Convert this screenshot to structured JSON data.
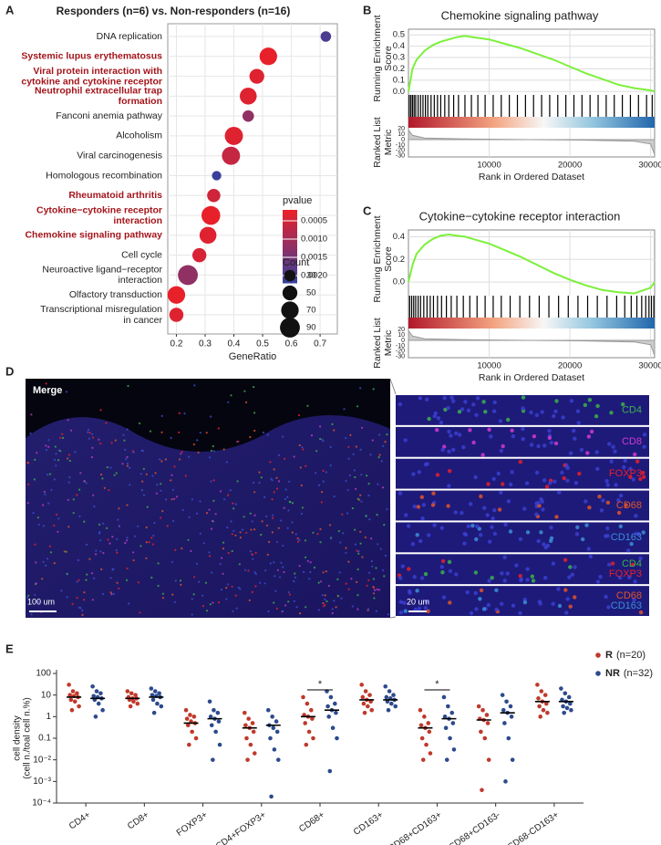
{
  "panel_labels": [
    "A",
    "B",
    "C",
    "D",
    "E"
  ],
  "chart_data": [
    {
      "type": "dotplot",
      "title": "Responders (n=6) vs. Non-responders (n=16)",
      "categories": [
        "DNA replication",
        "Systemic lupus erythematosus",
        "Viral protein interaction with\ncytokine and cytokine receptor",
        "Neutrophil extracellular trap\nformation",
        "Fanconi anemia pathway",
        "Alcoholism",
        "Viral carcinogenesis",
        "Homologous recombination",
        "Rheumatoid arthritis",
        "Cytokine−cytokine receptor\ninteraction",
        "Chemokine signaling pathway",
        "Cell cycle",
        "Neuroactive ligand−receptor\ninteraction",
        "Olfactory transduction",
        "Transcriptional misregulation\nin cancer"
      ],
      "highlighted": [
        false,
        true,
        true,
        true,
        false,
        false,
        false,
        false,
        true,
        true,
        true,
        false,
        false,
        false,
        false
      ],
      "highlight_color": "#a3151b",
      "x": [
        0.72,
        0.52,
        0.48,
        0.45,
        0.45,
        0.4,
        0.39,
        0.34,
        0.33,
        0.32,
        0.31,
        0.28,
        0.24,
        0.2,
        0.2
      ],
      "size": [
        25,
        70,
        50,
        65,
        30,
        75,
        75,
        20,
        40,
        80,
        65,
        45,
        90,
        70,
        45
      ],
      "color_values": [
        0.002,
        0.0002,
        0.0003,
        0.0003,
        0.0012,
        0.0003,
        0.0006,
        0.0022,
        0.0005,
        0.0002,
        0.0003,
        0.0004,
        0.0012,
        0.0002,
        0.0003
      ],
      "xlabel": "GeneRatio",
      "xlim": [
        0.17,
        0.76
      ],
      "xticks": [
        0.2,
        0.3,
        0.4,
        0.5,
        0.6,
        0.7
      ],
      "grid": true,
      "color_title": "pvalue",
      "color_lim": [
        0.0002,
        0.0022
      ],
      "colors": [
        "#e8202a",
        "#3a3f9b"
      ],
      "color_ticks": [
        0.0005,
        {
          "value": 0.001,
          "label": "0.0010"
        },
        0.0015,
        {
          "value": 0.002,
          "label": "0.0020"
        }
      ],
      "size_title": "Count",
      "size_ticks": [
        30,
        50,
        70,
        90
      ]
    },
    {
      "type": "gsea",
      "title": "Chemokine signaling pathway",
      "ylabel": "Running Enrichment\nScore",
      "color": "#7cf03a",
      "x": [
        0,
        500,
        1000,
        2000,
        3000,
        4000,
        5000,
        6000,
        7000,
        8000,
        10000,
        12000,
        14000,
        16000,
        18000,
        20000,
        22000,
        24000,
        26000,
        28000,
        30000,
        30500
      ],
      "values": [
        0,
        0.2,
        0.28,
        0.36,
        0.41,
        0.44,
        0.46,
        0.48,
        0.49,
        0.48,
        0.46,
        0.42,
        0.38,
        0.33,
        0.28,
        0.22,
        0.16,
        0.11,
        0.06,
        0.03,
        0.01,
        0
      ],
      "ylim": [
        -0.03,
        0.55
      ],
      "yticks": [
        {
          "value": 0,
          "label": "0.0"
        },
        0.1,
        0.2,
        0.3,
        0.4,
        0.5
      ],
      "hits": [
        100,
        300,
        500,
        700,
        900,
        1200,
        1500,
        1800,
        2100,
        2400,
        2800,
        3200,
        3600,
        4000,
        4500,
        5000,
        5600,
        6200,
        7000,
        7800,
        8600,
        9500,
        10500,
        11500,
        12500,
        13500,
        14500,
        15500,
        16500,
        17500,
        18500,
        19500,
        20500,
        21500,
        22500,
        23500,
        24500,
        25500,
        26500,
        27500,
        28500,
        29500,
        30200
      ],
      "metric_label": "Ranked List\nMetric",
      "metric_x": [
        0,
        500,
        2000,
        8000,
        15000,
        22000,
        28000,
        30000,
        30500
      ],
      "metric_values": [
        18,
        8,
        3,
        1,
        0,
        -1,
        -3,
        -8,
        -28
      ],
      "metric_ylim": [
        -32,
        22
      ],
      "metric_yticks": [
        20,
        10,
        0,
        -10,
        -20,
        -30
      ],
      "xlabel": "Rank in Ordered Dataset",
      "xlim": [
        0,
        30500
      ],
      "xticks": [
        10000,
        20000,
        30000
      ]
    },
    {
      "type": "gsea",
      "title": "Cytokine−cytokine receptor interaction",
      "ylabel": "Running Enrichment\nScore",
      "color": "#7cf03a",
      "x": [
        0,
        500,
        1000,
        2000,
        3000,
        4000,
        5000,
        6000,
        7000,
        8000,
        10000,
        12000,
        14000,
        16000,
        18000,
        20000,
        22000,
        24000,
        26000,
        28000,
        30000,
        30500
      ],
      "values": [
        0,
        0.15,
        0.25,
        0.33,
        0.38,
        0.41,
        0.42,
        0.41,
        0.4,
        0.38,
        0.34,
        0.28,
        0.22,
        0.15,
        0.08,
        0.02,
        -0.03,
        -0.07,
        -0.09,
        -0.1,
        -0.05,
        0
      ],
      "ylim": [
        -0.12,
        0.46
      ],
      "yticks": [
        {
          "value": 0,
          "label": "0.0"
        },
        0.2,
        0.4
      ],
      "hits": [
        150,
        400,
        650,
        900,
        1200,
        1500,
        1900,
        2300,
        2700,
        3100,
        3600,
        4100,
        4700,
        5300,
        6000,
        6800,
        7600,
        8500,
        9500,
        10500,
        11500,
        12600,
        13800,
        15000,
        16200,
        17400,
        18600,
        19800,
        21000,
        22200,
        23400,
        24600,
        25800,
        26800,
        27600,
        28300,
        28900,
        29400,
        29800,
        30100,
        30400
      ],
      "metric_label": "Ranked List\nMetric",
      "metric_x": [
        0,
        500,
        2000,
        8000,
        15000,
        22000,
        28000,
        30000,
        30500
      ],
      "metric_values": [
        18,
        8,
        3,
        1,
        0,
        -1,
        -3,
        -8,
        -28
      ],
      "metric_ylim": [
        -32,
        22
      ],
      "metric_yticks": [
        20,
        10,
        0,
        -10,
        -20,
        -30
      ],
      "xlabel": "Rank in Ordered Dataset",
      "xlim": [
        0,
        30500
      ],
      "xticks": [
        10000,
        20000,
        30000
      ]
    },
    {
      "type": "strip",
      "ylabel": "cell density\n(cell n./toal cell n.%)",
      "categories": [
        "CD4+",
        "CD8+",
        "FOXP3+",
        "CD4+FOXP3+",
        "CD68+",
        "CD163+",
        "CD68+CD163+",
        "CD68+CD163-",
        "CD68-CD163+"
      ],
      "log_y": true,
      "ylim": [
        0.0001,
        100
      ],
      "yticks": [
        100,
        10,
        1,
        0.1,
        {
          "value": 0.01,
          "label": "10⁻²"
        },
        {
          "value": 0.001,
          "label": "10⁻³"
        },
        {
          "value": 0.0001,
          "label": "10⁻⁴"
        }
      ],
      "series": [
        {
          "name": "R",
          "n_label": "(n=20)",
          "color": "#c0392b",
          "values": [
            [
              30,
              15,
              12,
              10,
              9,
              8,
              6,
              5,
              3,
              2
            ],
            [
              15,
              12,
              10,
              8,
              7,
              7,
              6,
              5,
              4,
              3
            ],
            [
              2,
              1.2,
              1,
              0.8,
              0.6,
              0.5,
              0.4,
              0.2,
              0.1,
              0.05
            ],
            [
              1.5,
              0.8,
              0.5,
              0.4,
              0.3,
              0.2,
              0.1,
              0.05,
              0.02,
              0.01
            ],
            [
              8,
              4,
              2,
              1.2,
              1,
              0.8,
              0.5,
              0.2,
              0.1,
              0.05
            ],
            [
              30,
              15,
              10,
              8,
              6,
              5,
              4,
              3,
              2,
              1.5
            ],
            [
              2,
              1,
              0.5,
              0.4,
              0.3,
              0.2,
              0.1,
              0.05,
              0.02,
              0.01
            ],
            [
              3,
              2,
              1.2,
              0.8,
              0.7,
              0.5,
              0.2,
              0.1,
              0.01,
              0.0004
            ],
            [
              30,
              15,
              10,
              7,
              5,
              4,
              3,
              2,
              1.5,
              1
            ]
          ],
          "medians": [
            8,
            7,
            0.5,
            0.3,
            1,
            6,
            0.3,
            0.7,
            5
          ]
        },
        {
          "name": "NR",
          "n_label": "(n=32)",
          "color": "#2c4a8c",
          "values": [
            [
              25,
              15,
              12,
              9,
              8,
              7,
              6,
              4,
              2,
              1
            ],
            [
              20,
              15,
              12,
              10,
              9,
              8,
              6,
              4,
              3,
              1.5
            ],
            [
              5,
              2,
              1.5,
              1,
              0.8,
              0.6,
              0.4,
              0.2,
              0.05,
              0.01
            ],
            [
              2,
              1,
              0.6,
              0.4,
              0.3,
              0.2,
              0.1,
              0.03,
              0.01,
              0.0002
            ],
            [
              15,
              8,
              4,
              3,
              2,
              1.5,
              1,
              0.3,
              0.1,
              0.003
            ],
            [
              25,
              15,
              10,
              8,
              7,
              6,
              5,
              4,
              3,
              2
            ],
            [
              8,
              3,
              1.5,
              1,
              0.8,
              0.5,
              0.3,
              0.1,
              0.03,
              0.01
            ],
            [
              10,
              5,
              3,
              2,
              1.5,
              1,
              0.5,
              0.1,
              0.01,
              0.001
            ],
            [
              20,
              12,
              8,
              6,
              5,
              4,
              3,
              2.5,
              2,
              1.5
            ]
          ],
          "medians": [
            7,
            8,
            0.8,
            0.4,
            2,
            6,
            0.8,
            1.5,
            5
          ]
        }
      ],
      "annotations": [
        {
          "text": "*",
          "category": 4
        },
        {
          "text": "*",
          "category": 6
        }
      ],
      "legend": "top-right"
    }
  ],
  "panel_d": {
    "merge_label": "Merge",
    "scale_left": "100 um",
    "scale_right": "20 um",
    "channels": [
      [
        "CD4"
      ],
      [
        "CD8"
      ],
      [
        "FOXP3"
      ],
      [
        "CD68"
      ],
      [
        "CD163"
      ],
      [
        "CD4",
        "FOXP3"
      ],
      [
        "CD68",
        "CD163"
      ]
    ],
    "marker_colors": {
      "CD4": "#3bb34a",
      "CD8": "#d23ad2",
      "FOXP3": "#e8202a",
      "CD68": "#e0552a",
      "CD163": "#3b8fd9"
    }
  }
}
